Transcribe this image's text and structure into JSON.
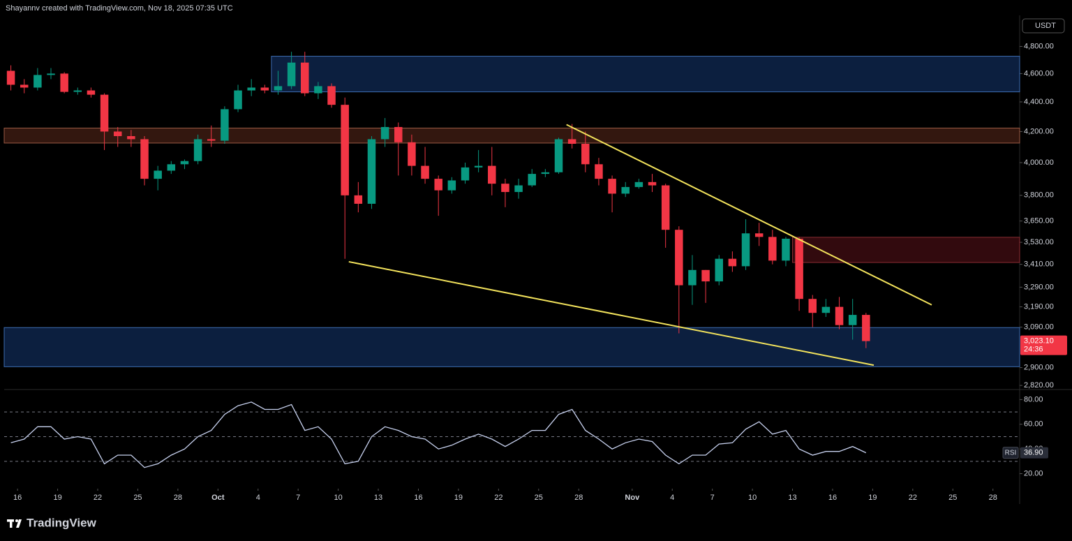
{
  "header": {
    "text": "Shayannv created with TradingView.com, Nov 18, 2025 07:35 UTC"
  },
  "logo": "TradingView",
  "currency": "USDT",
  "chart_data": [
    {
      "type": "candlestick",
      "log_scale": true,
      "up_color": "#089981",
      "down_color": "#f23645",
      "xlim": [
        "2025-09-15",
        "2025-11-30"
      ],
      "ylim": [
        2805,
        5040
      ],
      "yticks": [
        {
          "value": 2820,
          "label": "2,820.00"
        },
        {
          "value": 2900,
          "label": "2,900.00"
        },
        {
          "value": 3090,
          "label": "3,090.00"
        },
        {
          "value": 3190,
          "label": "3,190.00"
        },
        {
          "value": 3290,
          "label": "3,290.00"
        },
        {
          "value": 3410,
          "label": "3,410.00"
        },
        {
          "value": 3530,
          "label": "3,530.00"
        },
        {
          "value": 3650,
          "label": "3,650.00"
        },
        {
          "value": 3800,
          "label": "3,800.00"
        },
        {
          "value": 4000,
          "label": "4,000.00"
        },
        {
          "value": 4200,
          "label": "4,200.00"
        },
        {
          "value": 4400,
          "label": "4,400.00"
        },
        {
          "value": 4600,
          "label": "4,600.00"
        },
        {
          "value": 4800,
          "label": "4,800.00"
        }
      ],
      "x": [
        "2025-09-15",
        "2025-09-16",
        "2025-09-17",
        "2025-09-18",
        "2025-09-19",
        "2025-09-20",
        "2025-09-21",
        "2025-09-22",
        "2025-09-23",
        "2025-09-24",
        "2025-09-25",
        "2025-09-26",
        "2025-09-27",
        "2025-09-28",
        "2025-09-29",
        "2025-09-30",
        "2025-10-01",
        "2025-10-02",
        "2025-10-03",
        "2025-10-04",
        "2025-10-05",
        "2025-10-06",
        "2025-10-07",
        "2025-10-08",
        "2025-10-09",
        "2025-10-10",
        "2025-10-11",
        "2025-10-12",
        "2025-10-13",
        "2025-10-14",
        "2025-10-15",
        "2025-10-16",
        "2025-10-17",
        "2025-10-18",
        "2025-10-19",
        "2025-10-20",
        "2025-10-21",
        "2025-10-22",
        "2025-10-23",
        "2025-10-24",
        "2025-10-25",
        "2025-10-26",
        "2025-10-27",
        "2025-10-28",
        "2025-10-29",
        "2025-10-30",
        "2025-10-31",
        "2025-11-01",
        "2025-11-02",
        "2025-11-03",
        "2025-11-04",
        "2025-11-05",
        "2025-11-06",
        "2025-11-07",
        "2025-11-08",
        "2025-11-09",
        "2025-11-10",
        "2025-11-11",
        "2025-11-12",
        "2025-11-13",
        "2025-11-14",
        "2025-11-15",
        "2025-11-16",
        "2025-11-17",
        "2025-11-18"
      ],
      "open": [
        4620,
        4520,
        4500,
        4590,
        4600,
        4470,
        4480,
        4450,
        4200,
        4170,
        4150,
        3900,
        3950,
        3990,
        4010,
        4150,
        4140,
        4350,
        4480,
        4500,
        4480,
        4510,
        4680,
        4460,
        4510,
        4380,
        3800,
        3750,
        4150,
        4230,
        4130,
        3980,
        3900,
        3830,
        3890,
        3970,
        3980,
        3870,
        3820,
        3860,
        3930,
        3940,
        4150,
        4120,
        3990,
        3900,
        3810,
        3850,
        3880,
        3860,
        3600,
        3300,
        3380,
        3320,
        3440,
        3400,
        3580,
        3560,
        3430,
        3550,
        3230,
        3160,
        3190,
        3100,
        3150
      ],
      "high": [
        4660,
        4560,
        4640,
        4640,
        4610,
        4500,
        4500,
        4460,
        4230,
        4210,
        4170,
        3980,
        4010,
        4020,
        4180,
        4240,
        4370,
        4520,
        4560,
        4520,
        4620,
        4760,
        4760,
        4540,
        4530,
        4430,
        3880,
        4170,
        4290,
        4260,
        4180,
        4100,
        3920,
        3910,
        4000,
        4080,
        4100,
        3900,
        3900,
        3960,
        3960,
        4160,
        4250,
        4200,
        4030,
        3920,
        3880,
        3900,
        3930,
        3870,
        3620,
        3460,
        3380,
        3460,
        3480,
        3660,
        3640,
        3600,
        3560,
        3560,
        3250,
        3230,
        3240,
        3230,
        3160
      ],
      "low": [
        4480,
        4460,
        4480,
        4560,
        4460,
        4450,
        4430,
        4080,
        4100,
        4100,
        3860,
        3830,
        3930,
        3960,
        3990,
        4100,
        4120,
        4330,
        4440,
        4460,
        4450,
        4490,
        4440,
        4420,
        4360,
        3440,
        3700,
        3720,
        4100,
        3920,
        3920,
        3870,
        3680,
        3810,
        3870,
        3940,
        3800,
        3730,
        3780,
        3850,
        3910,
        3930,
        4090,
        3940,
        3860,
        3700,
        3790,
        3840,
        3820,
        3500,
        3060,
        3200,
        3210,
        3300,
        3370,
        3380,
        3510,
        3410,
        3400,
        3170,
        3090,
        3140,
        3080,
        3030,
        2990
      ],
      "close": [
        4520,
        4500,
        4590,
        4600,
        4470,
        4480,
        4450,
        4200,
        4170,
        4150,
        3900,
        3950,
        3990,
        4010,
        4150,
        4140,
        4350,
        4480,
        4500,
        4480,
        4510,
        4680,
        4460,
        4510,
        4380,
        3800,
        3750,
        4150,
        4230,
        4130,
        3980,
        3900,
        3830,
        3890,
        3970,
        3980,
        3870,
        3820,
        3860,
        3930,
        3940,
        4150,
        4120,
        3990,
        3900,
        3810,
        3850,
        3880,
        3860,
        3600,
        3300,
        3380,
        3320,
        3440,
        3400,
        3580,
        3560,
        3430,
        3550,
        3230,
        3160,
        3190,
        3100,
        3150,
        3023.1
      ],
      "zones": [
        {
          "from": "2025-10-05",
          "range": [
            4470,
            4727
          ],
          "color": "#0c1f3f",
          "border": "#3d6cb0"
        },
        {
          "range": [
            4125,
            4223
          ],
          "color": "#33170f",
          "border": "#9a5a44"
        },
        {
          "from": "2025-11-13",
          "range": [
            3420,
            3558
          ],
          "color": "#320a0e",
          "border": "#8c2d34"
        },
        {
          "range": [
            2904,
            3088
          ],
          "color": "#0c1f3f",
          "border": "#3d6cb0"
        }
      ],
      "lines": [
        {
          "color": "#f3e35c",
          "points": [
            {
              "x": "2025-10-27T02:00",
              "y": 4246
            },
            {
              "x": "2025-11-23T10:00",
              "y": 3200
            }
          ]
        },
        {
          "color": "#f3e35c",
          "points": [
            {
              "x": "2025-10-10T19:00",
              "y": 3424
            },
            {
              "x": "2025-11-19T02:00",
              "y": 2911
            }
          ]
        }
      ],
      "price_tag": {
        "value": 3023.1,
        "label": "3,023.10",
        "countdown": "24:36",
        "color": "#f23645"
      }
    },
    {
      "type": "line",
      "color": "#c8d2f0",
      "xlim": [
        "2025-09-15",
        "2025-11-30"
      ],
      "ylim": [
        9,
        87
      ],
      "yticks": [
        {
          "value": 20,
          "label": "20.00"
        },
        {
          "value": 40,
          "label": "40.00"
        },
        {
          "value": 60,
          "label": "60.00"
        },
        {
          "value": 80,
          "label": "80.00"
        }
      ],
      "levels": [
        30,
        50,
        70
      ],
      "xticks": [
        {
          "value": "2025-09-16",
          "label": "16"
        },
        {
          "value": "2025-09-19",
          "label": "19"
        },
        {
          "value": "2025-09-22",
          "label": "22"
        },
        {
          "value": "2025-09-25",
          "label": "25"
        },
        {
          "value": "2025-09-28",
          "label": "28"
        },
        {
          "value": "2025-10-01",
          "label": "Oct"
        },
        {
          "value": "2025-10-04",
          "label": "4"
        },
        {
          "value": "2025-10-07",
          "label": "7"
        },
        {
          "value": "2025-10-10",
          "label": "10"
        },
        {
          "value": "2025-10-13",
          "label": "13"
        },
        {
          "value": "2025-10-16",
          "label": "16"
        },
        {
          "value": "2025-10-19",
          "label": "19"
        },
        {
          "value": "2025-10-22",
          "label": "22"
        },
        {
          "value": "2025-10-25",
          "label": "25"
        },
        {
          "value": "2025-10-28",
          "label": "28"
        },
        {
          "value": "2025-11-01",
          "label": "Nov"
        },
        {
          "value": "2025-11-04",
          "label": "4"
        },
        {
          "value": "2025-11-07",
          "label": "7"
        },
        {
          "value": "2025-11-10",
          "label": "10"
        },
        {
          "value": "2025-11-13",
          "label": "13"
        },
        {
          "value": "2025-11-16",
          "label": "16"
        },
        {
          "value": "2025-11-19",
          "label": "19"
        },
        {
          "value": "2025-11-22",
          "label": "22"
        },
        {
          "value": "2025-11-25",
          "label": "25"
        },
        {
          "value": "2025-11-28",
          "label": "28"
        }
      ],
      "x": [
        "2025-09-15",
        "2025-09-16",
        "2025-09-17",
        "2025-09-18",
        "2025-09-19",
        "2025-09-20",
        "2025-09-21",
        "2025-09-22",
        "2025-09-23",
        "2025-09-24",
        "2025-09-25",
        "2025-09-26",
        "2025-09-27",
        "2025-09-28",
        "2025-09-29",
        "2025-09-30",
        "2025-10-01",
        "2025-10-02",
        "2025-10-03",
        "2025-10-04",
        "2025-10-05",
        "2025-10-06",
        "2025-10-07",
        "2025-10-08",
        "2025-10-09",
        "2025-10-10",
        "2025-10-11",
        "2025-10-12",
        "2025-10-13",
        "2025-10-14",
        "2025-10-15",
        "2025-10-16",
        "2025-10-17",
        "2025-10-18",
        "2025-10-19",
        "2025-10-20",
        "2025-10-21",
        "2025-10-22",
        "2025-10-23",
        "2025-10-24",
        "2025-10-25",
        "2025-10-26",
        "2025-10-27",
        "2025-10-28",
        "2025-10-29",
        "2025-10-30",
        "2025-10-31",
        "2025-11-01",
        "2025-11-02",
        "2025-11-03",
        "2025-11-04",
        "2025-11-05",
        "2025-11-06",
        "2025-11-07",
        "2025-11-08",
        "2025-11-09",
        "2025-11-10",
        "2025-11-11",
        "2025-11-12",
        "2025-11-13",
        "2025-11-14",
        "2025-11-15",
        "2025-11-16",
        "2025-11-17",
        "2025-11-18"
      ],
      "series": [
        {
          "name": "RSI",
          "color": "#c8d2f0",
          "values": [
            45,
            48,
            58,
            58,
            48,
            50,
            48,
            28,
            35,
            35,
            25,
            28,
            35,
            40,
            50,
            55,
            68,
            75,
            78,
            72,
            72,
            76,
            55,
            58,
            48,
            28,
            30,
            50,
            58,
            55,
            50,
            48,
            40,
            43,
            48,
            52,
            48,
            42,
            48,
            55,
            55,
            68,
            72,
            55,
            48,
            40,
            45,
            48,
            46,
            35,
            28,
            35,
            35,
            44,
            45,
            56,
            62,
            52,
            55,
            40,
            35,
            38,
            38,
            42,
            36.9
          ],
          "value_labels_last": "36.90"
        }
      ]
    }
  ]
}
